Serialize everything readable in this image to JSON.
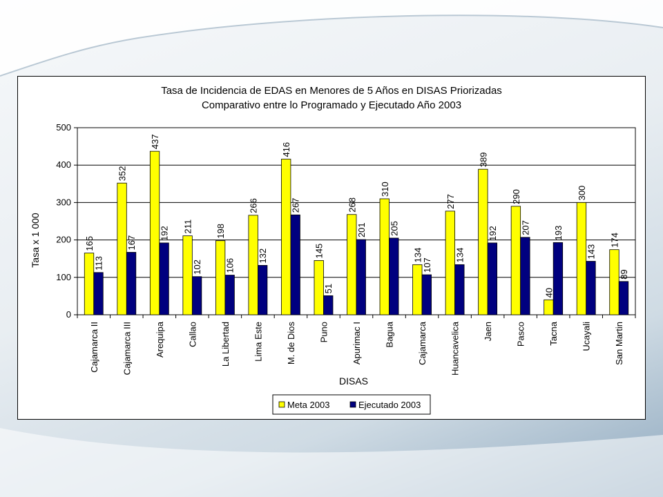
{
  "chart_data": {
    "type": "bar",
    "title": "Tasa de Incidencia de EDAS en Menores de 5 Años en DISAS Priorizadas",
    "subtitle": "Comparativo entre lo Programado y Ejecutado Año 2003",
    "xlabel": "DISAS",
    "ylabel": "Tasa x 1 000",
    "ylim": [
      0,
      500
    ],
    "yticks": [
      "0",
      "100",
      "200",
      "300",
      "400",
      "500"
    ],
    "grid": true,
    "legend_position": "bottom",
    "categories": [
      "Cajamarca II",
      "Cajamarca III",
      "Arequipa",
      "Callao",
      "La Libertad",
      "Lima Este",
      "M. de Dios",
      "Puno",
      "Apurimac I",
      "Bagua",
      "Cajamarca",
      "Huancavelica",
      "Jaen",
      "Pasco",
      "Tacna",
      "Ucayali",
      "San Martin"
    ],
    "series": [
      {
        "name": "Meta 2003",
        "color": "#ffff00",
        "values": [
          165,
          352,
          437,
          211,
          198,
          266,
          416,
          145,
          268,
          310,
          134,
          277,
          389,
          290,
          40,
          300,
          174
        ],
        "labels": [
          "165",
          "352",
          "437",
          "211",
          "198",
          "266",
          "416",
          "145",
          "268",
          "310",
          "134",
          "277",
          "389",
          "290",
          "40",
          "300",
          "174"
        ]
      },
      {
        "name": "Ejecutado 2003",
        "color": "#00007f",
        "values": [
          113,
          167,
          192,
          102,
          106,
          132,
          267,
          51,
          201,
          205,
          107,
          134,
          192,
          207,
          193,
          143,
          89
        ],
        "labels": [
          "113",
          "167",
          "192",
          "102",
          "106",
          "132",
          "267",
          "51",
          "201",
          "205",
          "107",
          "134",
          "192",
          "207",
          "193",
          "143",
          "89"
        ]
      }
    ]
  }
}
